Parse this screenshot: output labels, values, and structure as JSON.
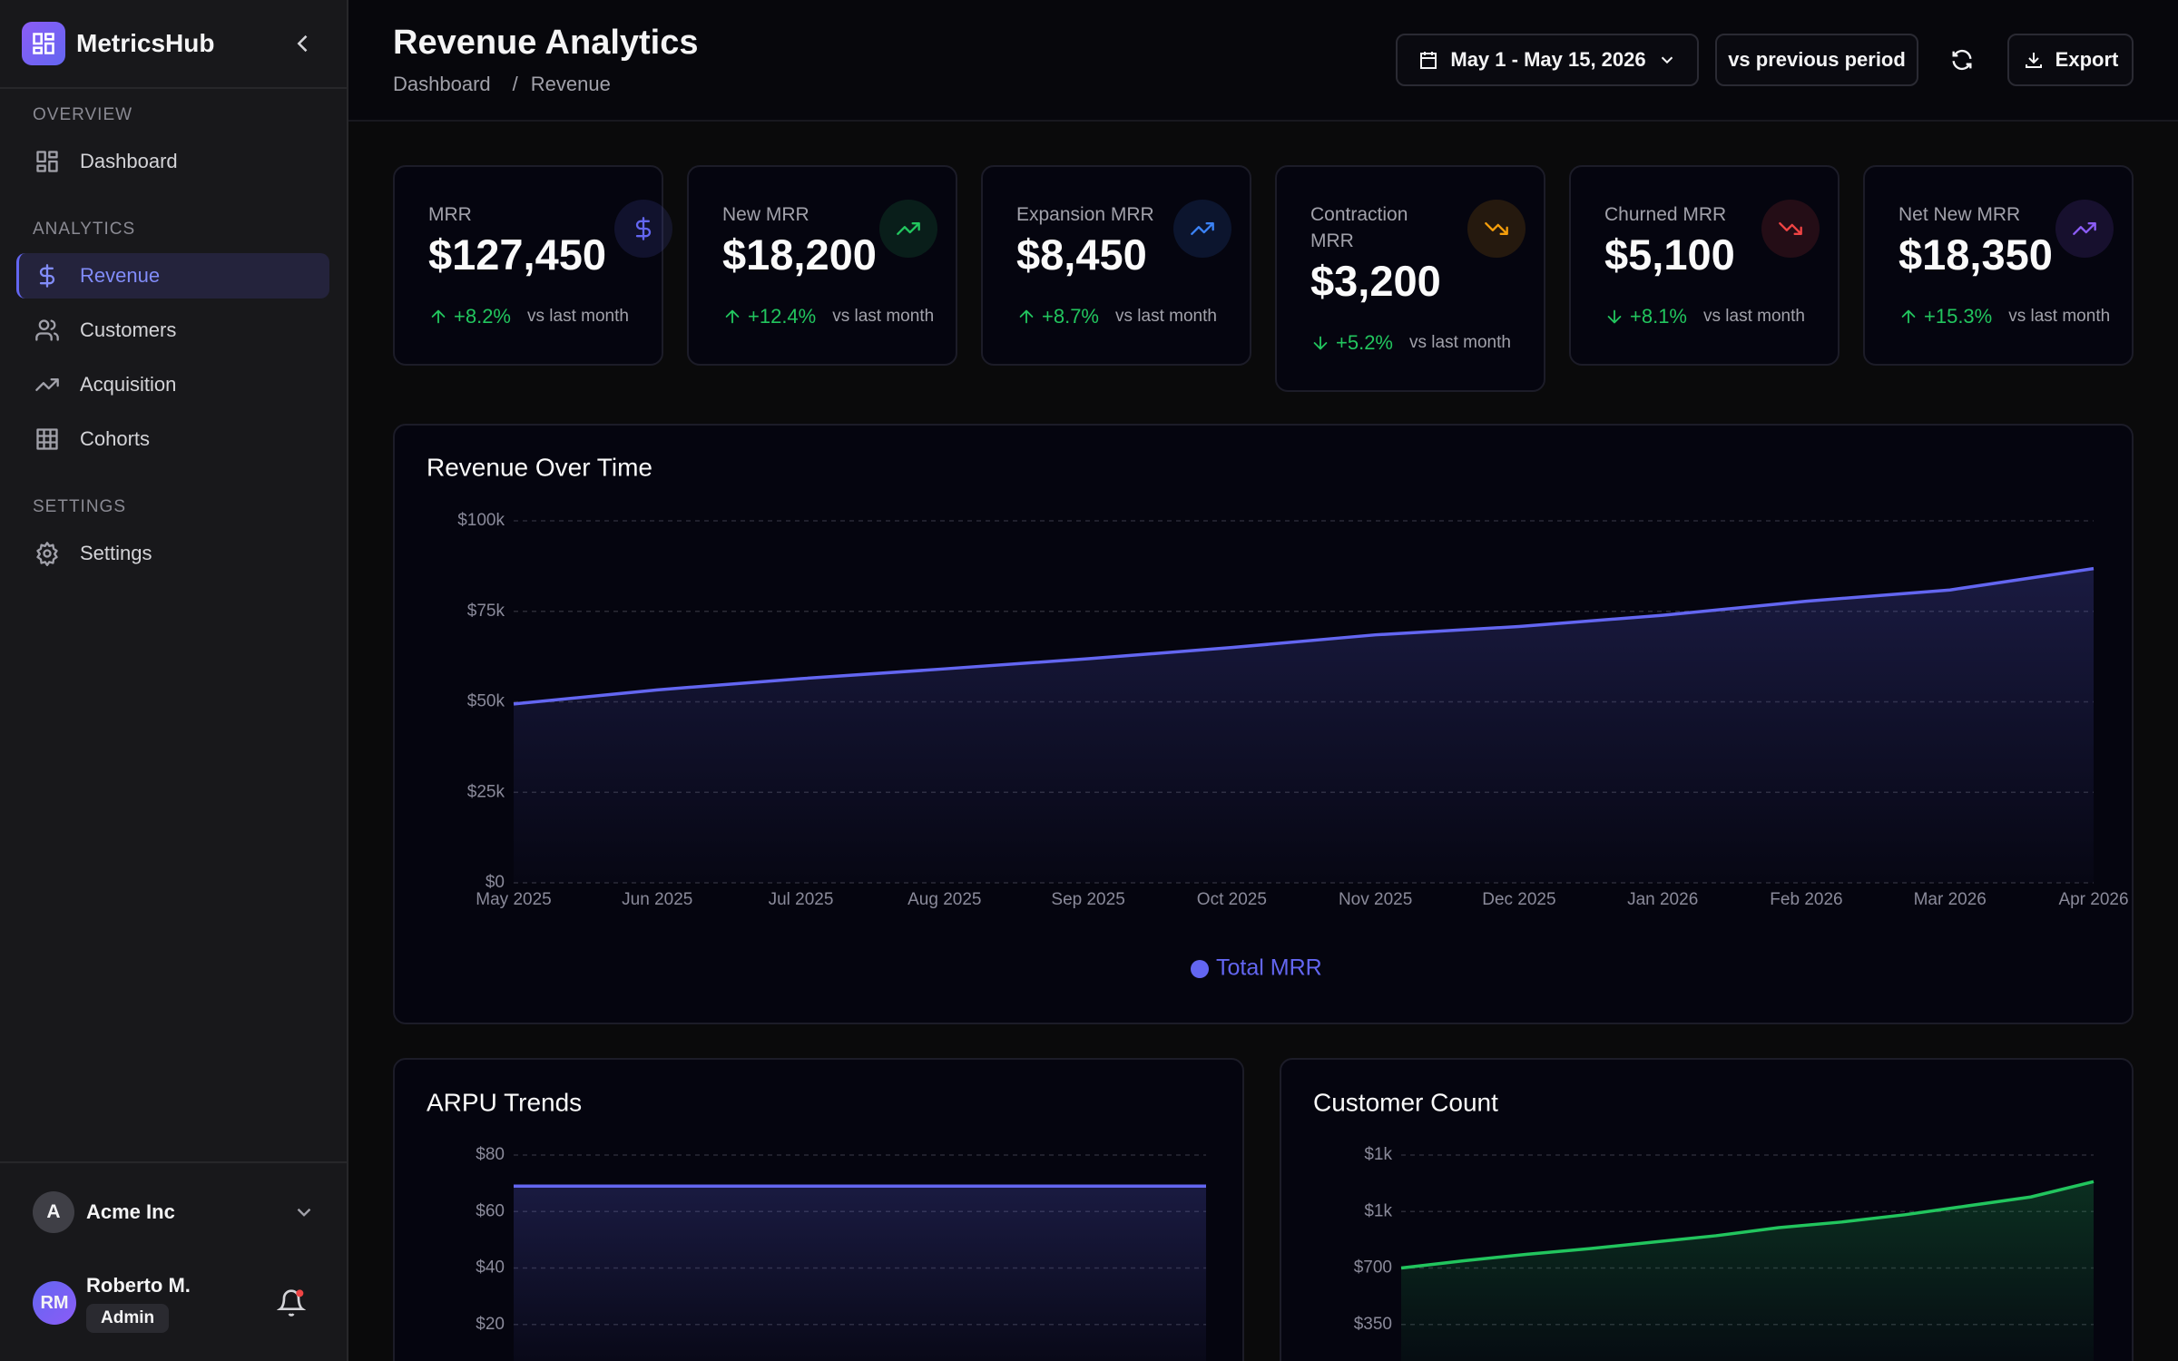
{
  "sidebar": {
    "brand": "MetricsHub",
    "sections": [
      {
        "label": "OVERVIEW",
        "items": [
          {
            "label": "Dashboard"
          }
        ]
      },
      {
        "label": "ANALYTICS",
        "items": [
          {
            "label": "Revenue",
            "active": true
          },
          {
            "label": "Customers"
          },
          {
            "label": "Acquisition"
          },
          {
            "label": "Cohorts"
          }
        ]
      },
      {
        "label": "SETTINGS",
        "items": [
          {
            "label": "Settings"
          }
        ]
      }
    ],
    "workspace": {
      "initial": "A",
      "name": "Acme Inc"
    },
    "user": {
      "initials": "RM",
      "name": "Roberto M.",
      "role": "Admin"
    }
  },
  "header": {
    "title": "Revenue Analytics",
    "breadcrumb": [
      "Dashboard",
      "Revenue"
    ],
    "breadcrumb_separator": "/",
    "date_range": "May 1 - May 15, 2026",
    "compare": "vs previous period",
    "export": "Export"
  },
  "kpis": [
    {
      "label": "MRR",
      "value": "$127,450",
      "change": "+8.2%",
      "direction": "up",
      "note": "vs last month",
      "icon": "dollar",
      "color": "#6366f1"
    },
    {
      "label": "New MRR",
      "value": "$18,200",
      "change": "+12.4%",
      "direction": "up",
      "note": "vs last month",
      "icon": "trend-up",
      "color": "#22c55e"
    },
    {
      "label": "Expansion MRR",
      "value": "$8,450",
      "change": "+8.7%",
      "direction": "up",
      "note": "vs last month",
      "icon": "trend-up",
      "color": "#3b82f6"
    },
    {
      "label": "Contraction MRR",
      "value": "$3,200",
      "change": "+5.2%",
      "direction": "down",
      "note": "vs last month",
      "icon": "trend-down",
      "color": "#f59e0b"
    },
    {
      "label": "Churned MRR",
      "value": "$5,100",
      "change": "+8.1%",
      "direction": "down",
      "note": "vs last month",
      "icon": "trend-down",
      "color": "#ef4444"
    },
    {
      "label": "Net New MRR",
      "value": "$18,350",
      "change": "+15.3%",
      "direction": "up",
      "note": "vs last month",
      "icon": "trend-up",
      "color": "#8b5cf6"
    }
  ],
  "charts": [
    {
      "type": "area",
      "title": "Revenue Over Time",
      "categories": [
        "May 2025",
        "Jun 2025",
        "Jul 2025",
        "Aug 2025",
        "Sep 2025",
        "Oct 2025",
        "Nov 2025",
        "Dec 2025",
        "Jan 2026",
        "Feb 2026",
        "Mar 2026",
        "Apr 2026"
      ],
      "series": [
        {
          "name": "Total MRR",
          "color": "#6366f1",
          "values": [
            49400,
            53300,
            56400,
            59100,
            61900,
            65000,
            68500,
            70800,
            73900,
            77800,
            80900,
            86800
          ]
        }
      ],
      "ylim": [
        0,
        100000
      ],
      "yticks": [
        {
          "value": 0,
          "label": "$0"
        },
        {
          "value": 25000,
          "label": "$25k"
        },
        {
          "value": 50000,
          "label": "$50k"
        },
        {
          "value": 75000,
          "label": "$75k"
        },
        {
          "value": 100000,
          "label": "$100k"
        }
      ],
      "grid": true,
      "legend": "bottom"
    },
    {
      "type": "area",
      "title": "ARPU Trends",
      "categories": [
        null,
        null,
        null,
        null,
        null,
        null,
        null,
        null,
        null,
        null,
        null,
        null
      ],
      "series": [
        {
          "color": "#6366f1",
          "values": [
            69,
            69,
            69,
            69,
            69,
            69,
            69,
            69,
            69,
            69,
            69,
            69
          ]
        }
      ],
      "ylim": [
        0,
        80
      ],
      "yticks": [
        {
          "value": 20,
          "label": "$20"
        },
        {
          "value": 40,
          "label": "$40"
        },
        {
          "value": 60,
          "label": "$60"
        },
        {
          "value": 80,
          "label": "$80"
        }
      ],
      "grid": true
    },
    {
      "type": "area",
      "title": "Customer Count",
      "categories": [
        null,
        null,
        null,
        null,
        null,
        null,
        null,
        null,
        null,
        null,
        null,
        null
      ],
      "series": [
        {
          "color": "#22c55e",
          "values": [
            700,
            745,
            785,
            820,
            860,
            900,
            950,
            985,
            1030,
            1085,
            1140,
            1235
          ]
        }
      ],
      "ylim": [
        0,
        1400
      ],
      "yticks": [
        {
          "value": 350,
          "label": "$350"
        },
        {
          "value": 700,
          "label": "$700"
        },
        {
          "value": 1050,
          "label": "$1k"
        },
        {
          "value": 1400,
          "label": "$1k"
        }
      ],
      "grid": true
    }
  ]
}
